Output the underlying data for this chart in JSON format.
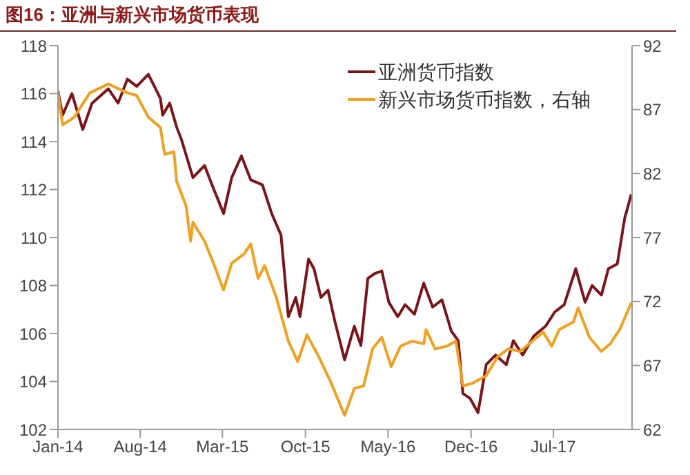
{
  "chart_data": {
    "type": "line",
    "title": "图16：亚洲与新兴市场货币表现",
    "xlim": [
      "2014-01-01",
      "2018-01-20"
    ],
    "xticks": [
      {
        "value": "2014-01-01",
        "label": "Jan-14"
      },
      {
        "value": "2014-08-01",
        "label": "Aug-14"
      },
      {
        "value": "2015-03-01",
        "label": "Mar-15"
      },
      {
        "value": "2015-10-01",
        "label": "Oct-15"
      },
      {
        "value": "2016-05-01",
        "label": "May-16"
      },
      {
        "value": "2016-12-01",
        "label": "Dec-16"
      },
      {
        "value": "2017-07-01",
        "label": "Jul-17"
      }
    ],
    "ylim": [
      102,
      118
    ],
    "yticks": [
      102,
      104,
      106,
      108,
      110,
      112,
      114,
      116,
      118
    ],
    "y2lim": [
      62,
      92
    ],
    "y2ticks": [
      62,
      67,
      72,
      77,
      82,
      87,
      92
    ],
    "grid": false,
    "legend": "top right",
    "series": [
      {
        "name": "亚洲货币指数",
        "color": "#7b1418",
        "x": [
          "2014-01-01",
          "2014-01-13",
          "2014-02-06",
          "2014-03-06",
          "2014-03-30",
          "2014-05-11",
          "2014-06-05",
          "2014-06-29",
          "2014-07-23",
          "2014-08-22",
          "2014-09-22",
          "2014-09-28",
          "2014-10-16",
          "2014-11-03",
          "2014-11-15",
          "2014-12-15",
          "2015-01-14",
          "2015-02-02",
          "2015-03-04",
          "2015-03-25",
          "2015-04-19",
          "2015-05-13",
          "2015-06-12",
          "2015-07-06",
          "2015-07-30",
          "2015-08-18",
          "2015-09-06",
          "2015-09-17",
          "2015-10-09",
          "2015-10-23",
          "2015-11-10",
          "2015-11-28",
          "2015-12-16",
          "2016-01-10",
          "2016-02-04",
          "2016-02-21",
          "2016-03-10",
          "2016-03-28",
          "2016-04-15",
          "2016-05-03",
          "2016-05-26",
          "2016-06-14",
          "2016-07-08",
          "2016-08-01",
          "2016-08-24",
          "2016-09-17",
          "2016-10-11",
          "2016-10-29",
          "2016-11-10",
          "2016-11-28",
          "2016-12-19",
          "2017-01-09",
          "2017-02-02",
          "2017-03-02",
          "2017-03-20",
          "2017-04-13",
          "2017-05-12",
          "2017-06-11",
          "2017-07-05",
          "2017-07-29",
          "2017-08-28",
          "2017-09-21",
          "2017-10-09",
          "2017-11-02",
          "2017-11-20",
          "2017-12-13",
          "2018-01-01",
          "2018-01-18"
        ],
        "values": [
          116.1,
          115.1,
          116.0,
          114.5,
          115.6,
          116.2,
          115.6,
          116.6,
          116.3,
          116.8,
          115.8,
          115.1,
          115.6,
          114.6,
          114.1,
          112.5,
          113.0,
          112.2,
          111.0,
          112.5,
          113.4,
          112.4,
          112.2,
          111.0,
          110.1,
          106.7,
          107.5,
          106.7,
          109.1,
          108.7,
          107.5,
          107.8,
          106.5,
          104.9,
          106.3,
          105.5,
          108.3,
          108.5,
          108.6,
          107.3,
          106.7,
          107.2,
          106.8,
          108.1,
          107.1,
          107.4,
          106.1,
          105.7,
          103.5,
          103.3,
          102.7,
          104.7,
          105.1,
          104.7,
          105.7,
          105.1,
          105.9,
          106.3,
          106.9,
          107.2,
          108.7,
          107.3,
          108.0,
          107.6,
          108.7,
          108.9,
          110.8,
          111.8
        ]
      },
      {
        "name": "新兴市场货币指数，右轴",
        "color": "#f0a020",
        "axis": "y2",
        "x": [
          "2014-01-01",
          "2014-01-13",
          "2014-02-12",
          "2014-03-24",
          "2014-05-11",
          "2014-06-29",
          "2014-07-23",
          "2014-08-22",
          "2014-09-22",
          "2014-10-03",
          "2014-10-27",
          "2014-11-03",
          "2014-11-27",
          "2014-12-09",
          "2014-12-15",
          "2015-01-14",
          "2015-02-02",
          "2015-03-04",
          "2015-03-25",
          "2015-04-25",
          "2015-05-13",
          "2015-06-01",
          "2015-06-18",
          "2015-07-18",
          "2015-08-18",
          "2015-09-11",
          "2015-10-05",
          "2015-11-04",
          "2015-12-04",
          "2016-01-10",
          "2016-02-04",
          "2016-02-28",
          "2016-03-22",
          "2016-04-15",
          "2016-05-09",
          "2016-06-02",
          "2016-07-01",
          "2016-08-01",
          "2016-08-07",
          "2016-08-30",
          "2016-09-29",
          "2016-10-23",
          "2016-11-10",
          "2016-12-04",
          "2017-01-09",
          "2017-02-08",
          "2017-03-07",
          "2017-04-07",
          "2017-05-12",
          "2017-06-05",
          "2017-06-27",
          "2017-07-16",
          "2017-08-22",
          "2017-09-03",
          "2017-10-02",
          "2017-11-02",
          "2017-11-25",
          "2017-12-19",
          "2018-01-18"
        ],
        "values": [
          88.3,
          85.8,
          86.4,
          88.3,
          89.0,
          88.3,
          88.1,
          86.4,
          85.6,
          83.5,
          83.7,
          81.4,
          79.5,
          76.7,
          78.2,
          76.7,
          75.3,
          72.9,
          75.0,
          75.7,
          76.5,
          73.8,
          74.8,
          72.3,
          68.9,
          67.3,
          69.4,
          67.7,
          65.8,
          63.1,
          65.2,
          65.4,
          68.3,
          69.2,
          66.9,
          68.5,
          68.9,
          68.7,
          69.8,
          68.3,
          68.5,
          68.9,
          65.4,
          65.6,
          66.2,
          67.7,
          68.3,
          68.1,
          69.0,
          69.6,
          68.5,
          69.8,
          70.4,
          71.5,
          69.2,
          68.1,
          68.7,
          69.8,
          71.9
        ]
      }
    ]
  }
}
